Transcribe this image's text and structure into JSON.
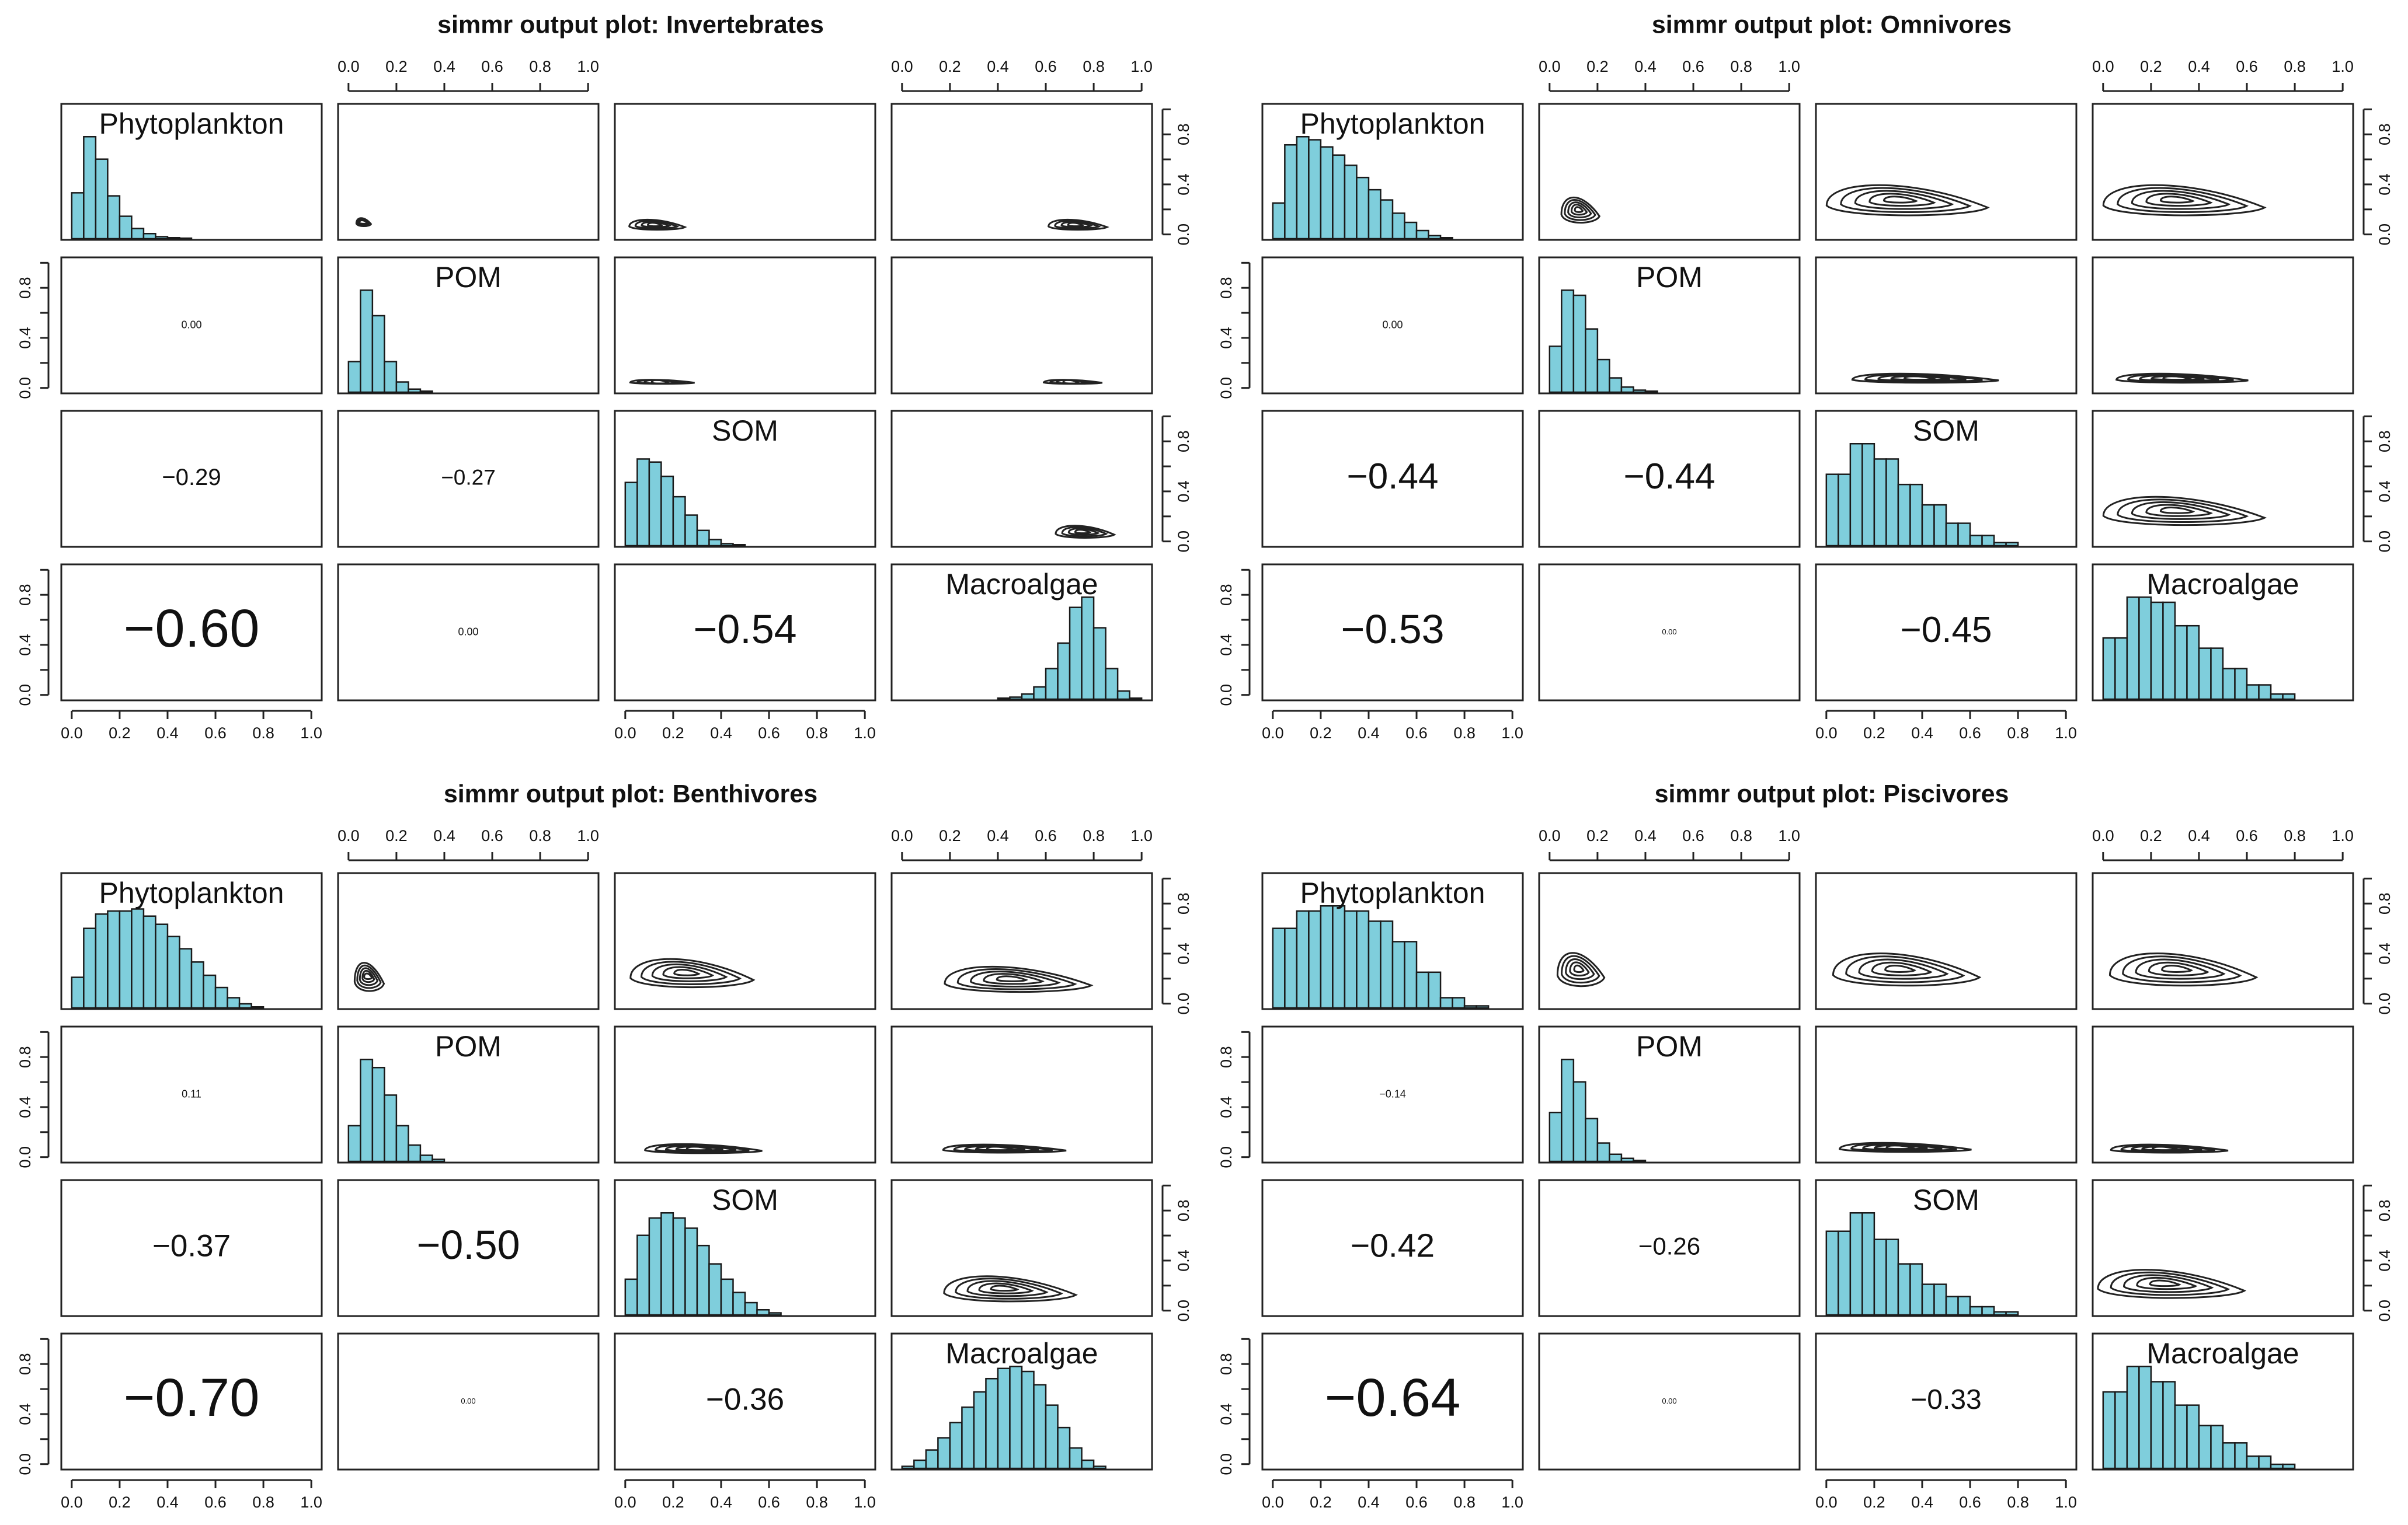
{
  "chart_data": {
    "type": "pairs-matrix",
    "variables": [
      "Phytoplankton",
      "POM",
      "SOM",
      "Macroalgae"
    ],
    "axis_range": [
      0,
      1
    ],
    "axis_ticks": [
      "0.0",
      "0.2",
      "0.4",
      "0.6",
      "0.8",
      "1.0"
    ],
    "hist_bins": 20,
    "panels": [
      {
        "title": "simmr output plot: Invertebrates",
        "diagonal_histograms": [
          [
            0.45,
            1.0,
            0.78,
            0.42,
            0.22,
            0.1,
            0.05,
            0.02,
            0.01,
            0.005,
            0,
            0,
            0,
            0,
            0,
            0,
            0,
            0,
            0,
            0
          ],
          [
            0.3,
            1.0,
            0.75,
            0.3,
            0.1,
            0.03,
            0.01,
            0,
            0,
            0,
            0,
            0,
            0,
            0,
            0,
            0,
            0,
            0,
            0,
            0
          ],
          [
            0.62,
            0.85,
            0.82,
            0.68,
            0.48,
            0.3,
            0.15,
            0.06,
            0.02,
            0.01,
            0,
            0,
            0,
            0,
            0,
            0,
            0,
            0,
            0,
            0
          ],
          [
            0,
            0,
            0,
            0,
            0,
            0,
            0,
            0,
            0.01,
            0.02,
            0.05,
            0.12,
            0.3,
            0.55,
            0.9,
            1.0,
            0.7,
            0.3,
            0.08,
            0.01
          ]
        ],
        "correlations": [
          {
            "row": 2,
            "col": 1,
            "label": "0.00",
            "size": 1.6
          },
          {
            "row": 3,
            "col": 1,
            "label": "−0.29",
            "size": 3.6
          },
          {
            "row": 3,
            "col": 2,
            "label": "−0.27",
            "size": 3.4
          },
          {
            "row": 4,
            "col": 1,
            "label": "−0.60",
            "size": 8.4
          },
          {
            "row": 4,
            "col": 2,
            "label": "0.00",
            "size": 1.6
          },
          {
            "row": 4,
            "col": 3,
            "label": "−0.54",
            "size": 6.4
          }
        ],
        "contours": [
          {
            "row": 1,
            "col": 2,
            "cx": 0.06,
            "cy": 0.1,
            "sx": 0.05,
            "sy": 0.08,
            "levels": 4
          },
          {
            "row": 1,
            "col": 3,
            "cx": 0.12,
            "cy": 0.08,
            "sx": 0.19,
            "sy": 0.1,
            "levels": 4
          },
          {
            "row": 1,
            "col": 4,
            "cx": 0.72,
            "cy": 0.08,
            "sx": 0.2,
            "sy": 0.1,
            "levels": 4
          },
          {
            "row": 2,
            "col": 3,
            "cx": 0.14,
            "cy": 0.05,
            "sx": 0.22,
            "sy": 0.04,
            "levels": 4
          },
          {
            "row": 2,
            "col": 4,
            "cx": 0.7,
            "cy": 0.05,
            "sx": 0.2,
            "sy": 0.04,
            "levels": 4
          },
          {
            "row": 3,
            "col": 4,
            "cx": 0.75,
            "cy": 0.08,
            "sx": 0.2,
            "sy": 0.12,
            "levels": 4
          }
        ]
      },
      {
        "title": "simmr output plot: Omnivores",
        "diagonal_histograms": [
          [
            0.35,
            0.92,
            1.0,
            0.97,
            0.9,
            0.82,
            0.72,
            0.6,
            0.48,
            0.38,
            0.25,
            0.16,
            0.08,
            0.03,
            0.01,
            0,
            0,
            0,
            0,
            0
          ],
          [
            0.45,
            1.0,
            0.95,
            0.62,
            0.32,
            0.14,
            0.05,
            0.02,
            0.01,
            0,
            0,
            0,
            0,
            0,
            0,
            0,
            0,
            0,
            0,
            0
          ],
          [
            0.7,
            0.7,
            1.0,
            1.0,
            0.85,
            0.85,
            0.6,
            0.6,
            0.4,
            0.4,
            0.22,
            0.22,
            0.1,
            0.1,
            0.03,
            0.03,
            0,
            0,
            0,
            0
          ],
          [
            0.6,
            0.6,
            1.0,
            1.0,
            0.95,
            0.95,
            0.72,
            0.72,
            0.5,
            0.5,
            0.3,
            0.3,
            0.14,
            0.14,
            0.05,
            0.05,
            0,
            0,
            0,
            0
          ]
        ],
        "correlations": [
          {
            "row": 2,
            "col": 1,
            "label": "0.00",
            "size": 1.6
          },
          {
            "row": 3,
            "col": 1,
            "label": "−0.44",
            "size": 5.6
          },
          {
            "row": 3,
            "col": 2,
            "label": "−0.44",
            "size": 5.6
          },
          {
            "row": 4,
            "col": 1,
            "label": "−0.53",
            "size": 6.4
          },
          {
            "row": 4,
            "col": 2,
            "label": "0.00",
            "size": 1.2
          },
          {
            "row": 4,
            "col": 3,
            "label": "−0.45",
            "size": 5.6
          }
        ],
        "contours": [
          {
            "row": 1,
            "col": 2,
            "cx": 0.12,
            "cy": 0.2,
            "sx": 0.13,
            "sy": 0.25,
            "levels": 5
          },
          {
            "row": 1,
            "col": 3,
            "cx": 0.3,
            "cy": 0.28,
            "sx": 0.55,
            "sy": 0.3,
            "levels": 5
          },
          {
            "row": 1,
            "col": 4,
            "cx": 0.3,
            "cy": 0.28,
            "sx": 0.55,
            "sy": 0.3,
            "levels": 5
          },
          {
            "row": 2,
            "col": 3,
            "cx": 0.38,
            "cy": 0.08,
            "sx": 0.5,
            "sy": 0.09,
            "levels": 5
          },
          {
            "row": 2,
            "col": 4,
            "cx": 0.3,
            "cy": 0.08,
            "sx": 0.45,
            "sy": 0.09,
            "levels": 5
          },
          {
            "row": 3,
            "col": 4,
            "cx": 0.3,
            "cy": 0.25,
            "sx": 0.55,
            "sy": 0.28,
            "levels": 5
          }
        ]
      },
      {
        "title": "simmr output plot: Benthivores",
        "diagonal_histograms": [
          [
            0.3,
            0.78,
            0.92,
            0.95,
            0.95,
            0.97,
            0.9,
            0.82,
            0.7,
            0.58,
            0.45,
            0.32,
            0.2,
            0.1,
            0.04,
            0.01,
            0,
            0,
            0,
            0
          ],
          [
            0.35,
            1.0,
            0.92,
            0.65,
            0.35,
            0.16,
            0.06,
            0.02,
            0,
            0,
            0,
            0,
            0,
            0,
            0,
            0,
            0,
            0,
            0,
            0
          ],
          [
            0.35,
            0.78,
            0.95,
            1.0,
            0.95,
            0.85,
            0.68,
            0.5,
            0.35,
            0.22,
            0.12,
            0.05,
            0.02,
            0,
            0,
            0,
            0,
            0,
            0,
            0
          ],
          [
            0.02,
            0.08,
            0.18,
            0.3,
            0.45,
            0.6,
            0.75,
            0.88,
            0.98,
            1.0,
            0.95,
            0.82,
            0.62,
            0.4,
            0.2,
            0.08,
            0.02,
            0,
            0,
            0
          ]
        ],
        "correlations": [
          {
            "row": 2,
            "col": 1,
            "label": "0.11",
            "size": 1.6
          },
          {
            "row": 3,
            "col": 1,
            "label": "−0.37",
            "size": 4.8
          },
          {
            "row": 3,
            "col": 2,
            "label": "−0.50",
            "size": 6.4
          },
          {
            "row": 4,
            "col": 1,
            "label": "−0.70",
            "size": 8.4
          },
          {
            "row": 4,
            "col": 2,
            "label": "0.00",
            "size": 1.2
          },
          {
            "row": 4,
            "col": 3,
            "label": "−0.36",
            "size": 4.8
          }
        ],
        "contours": [
          {
            "row": 1,
            "col": 2,
            "cx": 0.08,
            "cy": 0.22,
            "sx": 0.1,
            "sy": 0.28,
            "levels": 5
          },
          {
            "row": 1,
            "col": 3,
            "cx": 0.25,
            "cy": 0.25,
            "sx": 0.42,
            "sy": 0.28,
            "levels": 5
          },
          {
            "row": 1,
            "col": 4,
            "cx": 0.45,
            "cy": 0.2,
            "sx": 0.5,
            "sy": 0.25,
            "levels": 5
          },
          {
            "row": 2,
            "col": 3,
            "cx": 0.3,
            "cy": 0.07,
            "sx": 0.4,
            "sy": 0.09,
            "levels": 5
          },
          {
            "row": 2,
            "col": 4,
            "cx": 0.4,
            "cy": 0.07,
            "sx": 0.42,
            "sy": 0.08,
            "levels": 5
          },
          {
            "row": 3,
            "col": 4,
            "cx": 0.42,
            "cy": 0.18,
            "sx": 0.45,
            "sy": 0.25,
            "levels": 5
          }
        ]
      },
      {
        "title": "simmr output plot: Piscivores",
        "diagonal_histograms": [
          [
            0.78,
            0.78,
            0.95,
            0.95,
            1.0,
            1.0,
            0.95,
            0.95,
            0.85,
            0.85,
            0.65,
            0.65,
            0.35,
            0.35,
            0.1,
            0.1,
            0.02,
            0.02,
            0,
            0
          ],
          [
            0.48,
            1.0,
            0.78,
            0.42,
            0.18,
            0.07,
            0.03,
            0.01,
            0,
            0,
            0,
            0,
            0,
            0,
            0,
            0,
            0,
            0,
            0,
            0
          ],
          [
            0.82,
            0.82,
            1.0,
            1.0,
            0.74,
            0.74,
            0.5,
            0.5,
            0.3,
            0.3,
            0.18,
            0.18,
            0.08,
            0.08,
            0.03,
            0.03,
            0,
            0,
            0,
            0
          ],
          [
            0.75,
            0.75,
            1.0,
            1.0,
            0.85,
            0.85,
            0.62,
            0.62,
            0.42,
            0.42,
            0.25,
            0.25,
            0.12,
            0.12,
            0.04,
            0.04,
            0,
            0,
            0,
            0
          ]
        ],
        "correlations": [
          {
            "row": 2,
            "col": 1,
            "label": "−0.14",
            "size": 1.6
          },
          {
            "row": 3,
            "col": 1,
            "label": "−0.42",
            "size": 5.2
          },
          {
            "row": 3,
            "col": 2,
            "label": "−0.26",
            "size": 3.8
          },
          {
            "row": 4,
            "col": 1,
            "label": "−0.64",
            "size": 8.4
          },
          {
            "row": 4,
            "col": 2,
            "label": "0.00",
            "size": 1.2
          },
          {
            "row": 4,
            "col": 3,
            "label": "−0.33",
            "size": 4.4
          }
        ],
        "contours": [
          {
            "row": 1,
            "col": 2,
            "cx": 0.12,
            "cy": 0.28,
            "sx": 0.16,
            "sy": 0.33,
            "levels": 5
          },
          {
            "row": 1,
            "col": 3,
            "cx": 0.3,
            "cy": 0.28,
            "sx": 0.5,
            "sy": 0.32,
            "levels": 5
          },
          {
            "row": 1,
            "col": 4,
            "cx": 0.3,
            "cy": 0.28,
            "sx": 0.5,
            "sy": 0.32,
            "levels": 5
          },
          {
            "row": 2,
            "col": 3,
            "cx": 0.3,
            "cy": 0.08,
            "sx": 0.45,
            "sy": 0.09,
            "levels": 5
          },
          {
            "row": 2,
            "col": 4,
            "cx": 0.25,
            "cy": 0.07,
            "sx": 0.4,
            "sy": 0.08,
            "levels": 5
          },
          {
            "row": 3,
            "col": 4,
            "cx": 0.25,
            "cy": 0.22,
            "sx": 0.5,
            "sy": 0.28,
            "levels": 5
          }
        ]
      }
    ]
  },
  "colors": {
    "bar_fill": "#7fcedc",
    "bar_stroke": "#1a1a1a",
    "frame": "#222222",
    "text": "#111111"
  }
}
